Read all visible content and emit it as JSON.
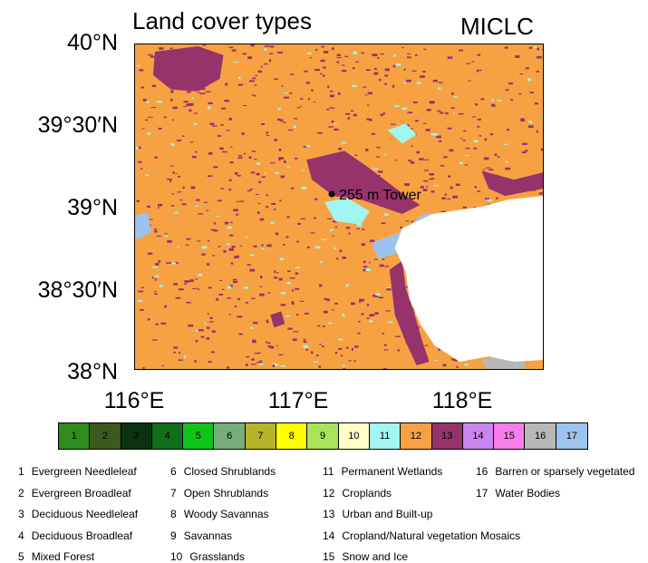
{
  "title": "Land cover types",
  "scheme": "MICLC",
  "lat_labels": [
    "40°N",
    "39°30′N",
    "39°N",
    "38°30′N",
    "38°N"
  ],
  "lon_labels": [
    "116°E",
    "117°E",
    "118°E"
  ],
  "marker_label": "255 m Tower",
  "classes": [
    {
      "num": "1",
      "name": "Evergreen Needleleaf",
      "color": "#2e8b1c"
    },
    {
      "num": "2",
      "name": "Evergreen Broadleaf",
      "color": "#3c5a1e"
    },
    {
      "num": "3",
      "name": "Deciduous Needleleaf",
      "color": "#0b3310"
    },
    {
      "num": "4",
      "name": "Deciduous Broadleaf",
      "color": "#116e1a"
    },
    {
      "num": "5",
      "name": "Mixed Forest",
      "color": "#10c51a"
    },
    {
      "num": "6",
      "name": "Closed Shrublands",
      "color": "#77ad7a"
    },
    {
      "num": "7",
      "name": "Open Shrublands",
      "color": "#b5b32a"
    },
    {
      "num": "8",
      "name": "Woody Savannas",
      "color": "#ffff00"
    },
    {
      "num": "9",
      "name": "Savannas",
      "color": "#a8e35a"
    },
    {
      "num": "10",
      "name": "Grasslands",
      "color": "#ffffc6"
    },
    {
      "num": "11",
      "name": "Permanent Wetlands",
      "color": "#a2f5f1"
    },
    {
      "num": "12",
      "name": "Croplands",
      "color": "#f6a243"
    },
    {
      "num": "13",
      "name": "Urban and Built-up",
      "color": "#97336b"
    },
    {
      "num": "14",
      "name": "Cropland/Natural vegetation Mosaics",
      "color": "#c986f0"
    },
    {
      "num": "15",
      "name": "Snow and Ice",
      "color": "#f77de8"
    },
    {
      "num": "16",
      "name": "Barren or sparsely vegetated",
      "color": "#b7b7b7"
    },
    {
      "num": "17",
      "name": "Water Bodies",
      "color": "#9bc3ee"
    }
  ]
}
